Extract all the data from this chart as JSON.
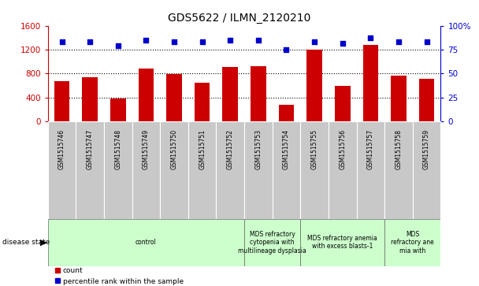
{
  "title": "GDS5622 / ILMN_2120210",
  "samples": [
    "GSM1515746",
    "GSM1515747",
    "GSM1515748",
    "GSM1515749",
    "GSM1515750",
    "GSM1515751",
    "GSM1515752",
    "GSM1515753",
    "GSM1515754",
    "GSM1515755",
    "GSM1515756",
    "GSM1515757",
    "GSM1515758",
    "GSM1515759"
  ],
  "counts": [
    680,
    740,
    390,
    880,
    790,
    650,
    910,
    930,
    280,
    1200,
    590,
    1280,
    770,
    720
  ],
  "percentile_ranks": [
    83,
    83,
    79,
    85,
    83,
    83,
    85,
    85,
    75,
    83,
    82,
    87,
    83,
    83
  ],
  "ylim_left": [
    0,
    1600
  ],
  "ylim_right": [
    0,
    100
  ],
  "yticks_left": [
    0,
    400,
    800,
    1200,
    1600
  ],
  "yticks_right": [
    0,
    25,
    50,
    75,
    100
  ],
  "bar_color": "#cc0000",
  "dot_color": "#0000cc",
  "grid_color": "#000000",
  "disease_groups": [
    {
      "label": "control",
      "start": 0,
      "end": 7
    },
    {
      "label": "MDS refractory\ncytopenia with\nmultilineage dysplasia",
      "start": 7,
      "end": 9
    },
    {
      "label": "MDS refractory anemia\nwith excess blasts-1",
      "start": 9,
      "end": 12
    },
    {
      "label": "MDS\nrefractory ane\nmia with",
      "start": 12,
      "end": 14
    }
  ],
  "disease_label": "disease state",
  "legend_count": "count",
  "legend_percentile": "percentile rank within the sample",
  "bg_color": "#ffffff",
  "tick_bg_color": "#c8c8c8",
  "disease_bg_color": "#ccffcc"
}
